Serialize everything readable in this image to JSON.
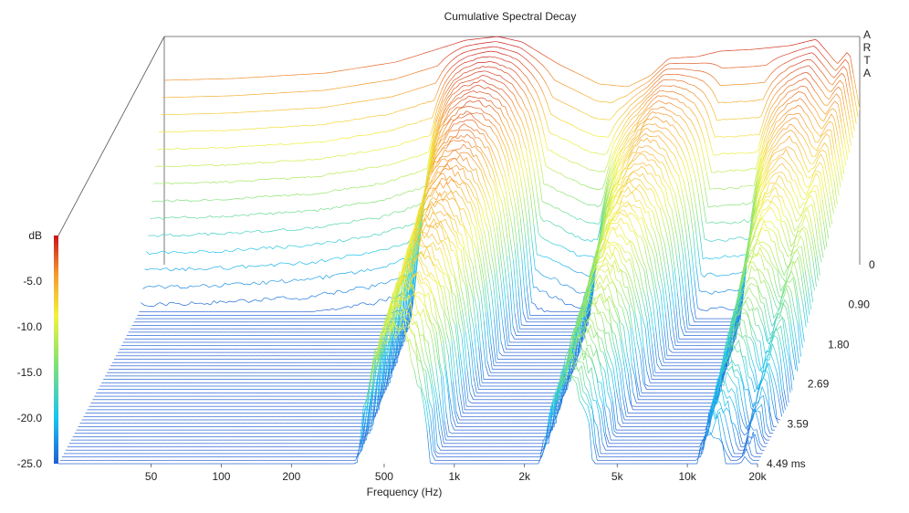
{
  "chart_data": {
    "type": "waterfall",
    "title": "Cumulative Spectral Decay",
    "watermark": "ARTA",
    "xlabel": "Frequency (Hz)",
    "x_scale": "log",
    "xlim": [
      20,
      20000
    ],
    "x_ticks": [
      {
        "value": 50,
        "label": "50"
      },
      {
        "value": 100,
        "label": "100"
      },
      {
        "value": 200,
        "label": "200"
      },
      {
        "value": 500,
        "label": "500"
      },
      {
        "value": 1000,
        "label": "1k"
      },
      {
        "value": 2000,
        "label": "2k"
      },
      {
        "value": 5000,
        "label": "5k"
      },
      {
        "value": 10000,
        "label": "10k"
      },
      {
        "value": 20000,
        "label": "20k"
      }
    ],
    "zlabel": "dB",
    "zlim": [
      -25,
      0
    ],
    "z_ticks": [
      {
        "value": -5,
        "label": "-5.0"
      },
      {
        "value": -10,
        "label": "-10.0"
      },
      {
        "value": -15,
        "label": "-15.0"
      },
      {
        "value": -20,
        "label": "-20.0"
      },
      {
        "value": -25,
        "label": "-25.0"
      }
    ],
    "time_unit": "ms",
    "time_ticks": [
      {
        "value": 0,
        "label": "0"
      },
      {
        "value": 0.9,
        "label": "0.90"
      },
      {
        "value": 1.8,
        "label": "1.80"
      },
      {
        "value": 2.69,
        "label": "2.69"
      },
      {
        "value": 3.59,
        "label": "3.59"
      },
      {
        "value": 4.49,
        "label": "4.49 ms"
      }
    ],
    "slice_count": 60,
    "colormap": [
      "#1f5fd6",
      "#18c4f0",
      "#86e36f",
      "#f2f23c",
      "#f59b2c",
      "#c8141a"
    ],
    "response_at_t0": [
      {
        "f": 20,
        "db": -4.8
      },
      {
        "f": 40,
        "db": -4.6
      },
      {
        "f": 100,
        "db": -4.0
      },
      {
        "f": 200,
        "db": -2.8
      },
      {
        "f": 300,
        "db": -1.4
      },
      {
        "f": 400,
        "db": -0.4
      },
      {
        "f": 550,
        "db": 0
      },
      {
        "f": 700,
        "db": -0.6
      },
      {
        "f": 1000,
        "db": -3.0
      },
      {
        "f": 1500,
        "db": -5.2
      },
      {
        "f": 2000,
        "db": -5.5
      },
      {
        "f": 2500,
        "db": -4.3
      },
      {
        "f": 3000,
        "db": -2.4
      },
      {
        "f": 4000,
        "db": -2.2
      },
      {
        "f": 5000,
        "db": -1.6
      },
      {
        "f": 7000,
        "db": -1.4
      },
      {
        "f": 10000,
        "db": -1.0
      },
      {
        "f": 13000,
        "db": -0.3
      },
      {
        "f": 16000,
        "db": -3.0
      },
      {
        "f": 18000,
        "db": -1.5
      },
      {
        "f": 20000,
        "db": -8.0
      }
    ],
    "resonances": [
      {
        "f": 550,
        "decay_ms": 2.6
      },
      {
        "f": 3000,
        "decay_ms": 2.0
      },
      {
        "f": 13000,
        "decay_ms": 1.3
      },
      {
        "f": 18000,
        "decay_ms": 1.2
      }
    ],
    "noise_floor_db": -25
  }
}
